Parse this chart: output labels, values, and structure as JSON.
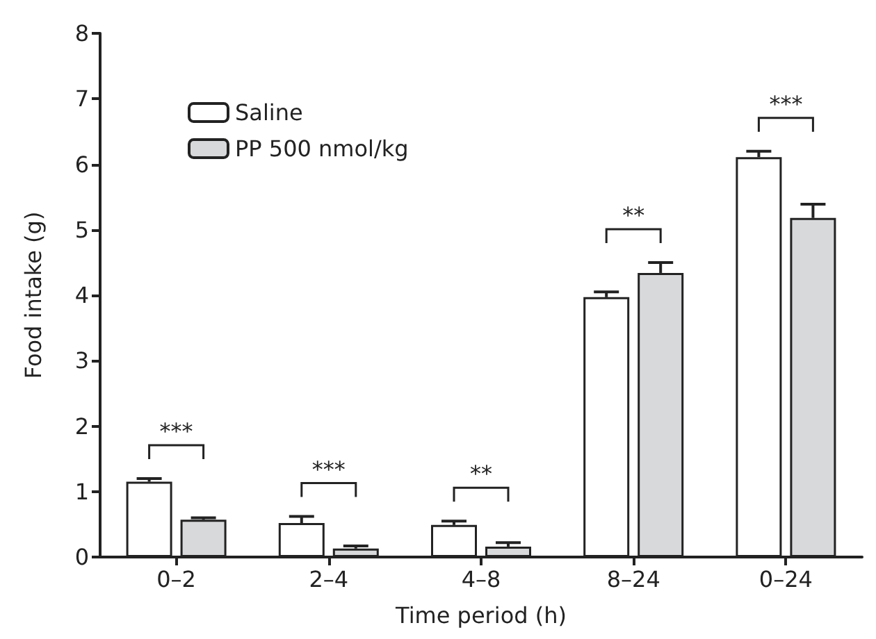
{
  "chart_data": {
    "type": "bar",
    "xlabel": "Time period (h)",
    "ylabel": "Food intake (g)",
    "categories": [
      "0–2",
      "2–4",
      "4–8",
      "8–24",
      "0–24"
    ],
    "series": [
      {
        "name": "Saline",
        "color": "#ffffff",
        "values": [
          1.15,
          0.52,
          0.49,
          3.97,
          6.11
        ],
        "errors": [
          [
            1.15,
            1.2
          ],
          [
            0.52,
            0.62
          ],
          [
            0.49,
            0.55
          ],
          [
            3.97,
            4.05
          ],
          [
            6.11,
            6.2
          ]
        ]
      },
      {
        "name": "PP 500 nmol/kg",
        "color": "#d8d9db",
        "values": [
          0.57,
          0.13,
          0.16,
          4.34,
          5.18
        ],
        "errors": [
          [
            0.57,
            0.6
          ],
          [
            0.13,
            0.17
          ],
          [
            0.16,
            0.22
          ],
          [
            4.34,
            4.5
          ],
          [
            5.18,
            5.39
          ]
        ]
      }
    ],
    "ylim": [
      0,
      8
    ],
    "yticks": [
      0,
      1,
      2,
      3,
      4,
      5,
      6,
      7,
      8
    ],
    "grid": false,
    "legend": "top left",
    "annotations": [
      "***",
      "***",
      "**",
      "**",
      "***"
    ]
  }
}
